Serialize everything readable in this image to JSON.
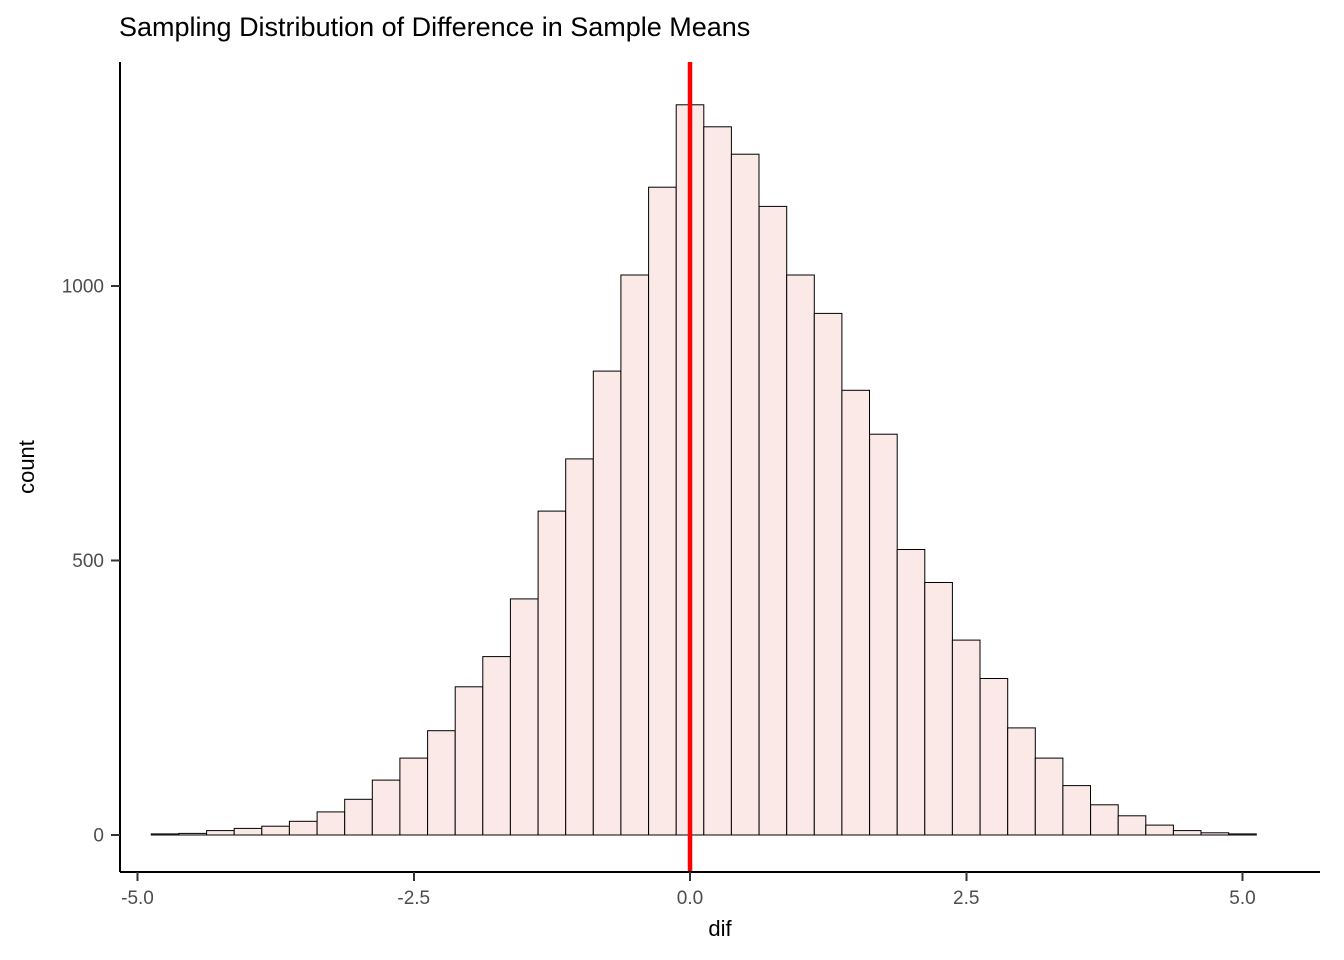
{
  "chart_data": {
    "type": "bar",
    "chart_kind": "histogram",
    "title": "Sampling Distribution of Difference in Sample Means",
    "xlabel": "dif",
    "ylabel": "count",
    "x_ticks": [
      -5.0,
      -2.5,
      0.0,
      2.5,
      5.0
    ],
    "x_tick_labels": [
      "-5.0",
      "-2.5",
      "0.0",
      "2.5",
      "5.0"
    ],
    "y_ticks": [
      0,
      500,
      1000
    ],
    "y_tick_labels": [
      "0",
      "500",
      "1000"
    ],
    "xlim": [
      -5.16,
      5.7
    ],
    "ylim": [
      0,
      1408
    ],
    "grid": "off",
    "legend": "none",
    "bin_width": 0.25,
    "bin_start": -4.875,
    "counts": [
      2,
      3,
      8,
      12,
      16,
      25,
      42,
      65,
      100,
      140,
      190,
      270,
      325,
      430,
      590,
      685,
      845,
      1020,
      1180,
      1330,
      1290,
      1240,
      1145,
      1020,
      950,
      810,
      730,
      520,
      460,
      355,
      285,
      195,
      140,
      90,
      55,
      35,
      18,
      8,
      4,
      2
    ],
    "vline": {
      "x": 0,
      "color": "#FF0000"
    },
    "colors": {
      "bar_fill": "#FBE9E7",
      "bar_stroke": "#000000",
      "axis_line": "#000000",
      "tick_mark": "#333333",
      "tick_label": "#4D4D4D",
      "title_text": "#000000"
    }
  }
}
